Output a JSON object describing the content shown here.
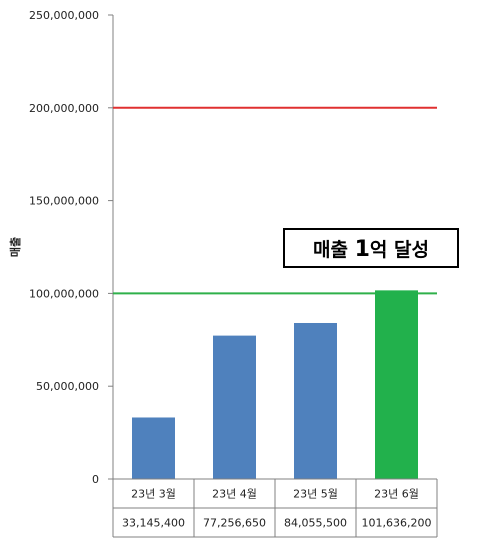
{
  "chart_data": {
    "type": "bar",
    "categories": [
      "23년 3월",
      "23년 4월",
      "23년 5월",
      "23년 6월"
    ],
    "values": [
      33145400,
      77256650,
      84055500,
      101636200
    ],
    "value_labels": [
      "33,145,400",
      "77,256,650",
      "84,055,500",
      "101,636,200"
    ],
    "bar_colors": [
      "#4f81bd",
      "#4f81bd",
      "#4f81bd",
      "#22b14c"
    ],
    "ylabel": "매출",
    "ylim": [
      0,
      250000000
    ],
    "yticks": [
      0,
      50000000,
      100000000,
      150000000,
      200000000,
      250000000
    ],
    "ytick_labels": [
      "0",
      "50,000,000",
      "100,000,000",
      "150,000,000",
      "200,000,000",
      "250,000,000"
    ],
    "grid": false,
    "reference_lines": [
      {
        "value": 200000000,
        "color": "#e03030"
      },
      {
        "value": 100000000,
        "color": "#2fb04a"
      }
    ],
    "annotation": {
      "text_pre": "매출 ",
      "text_bold": "1",
      "text_post": "억 달성"
    },
    "data_table": true
  }
}
